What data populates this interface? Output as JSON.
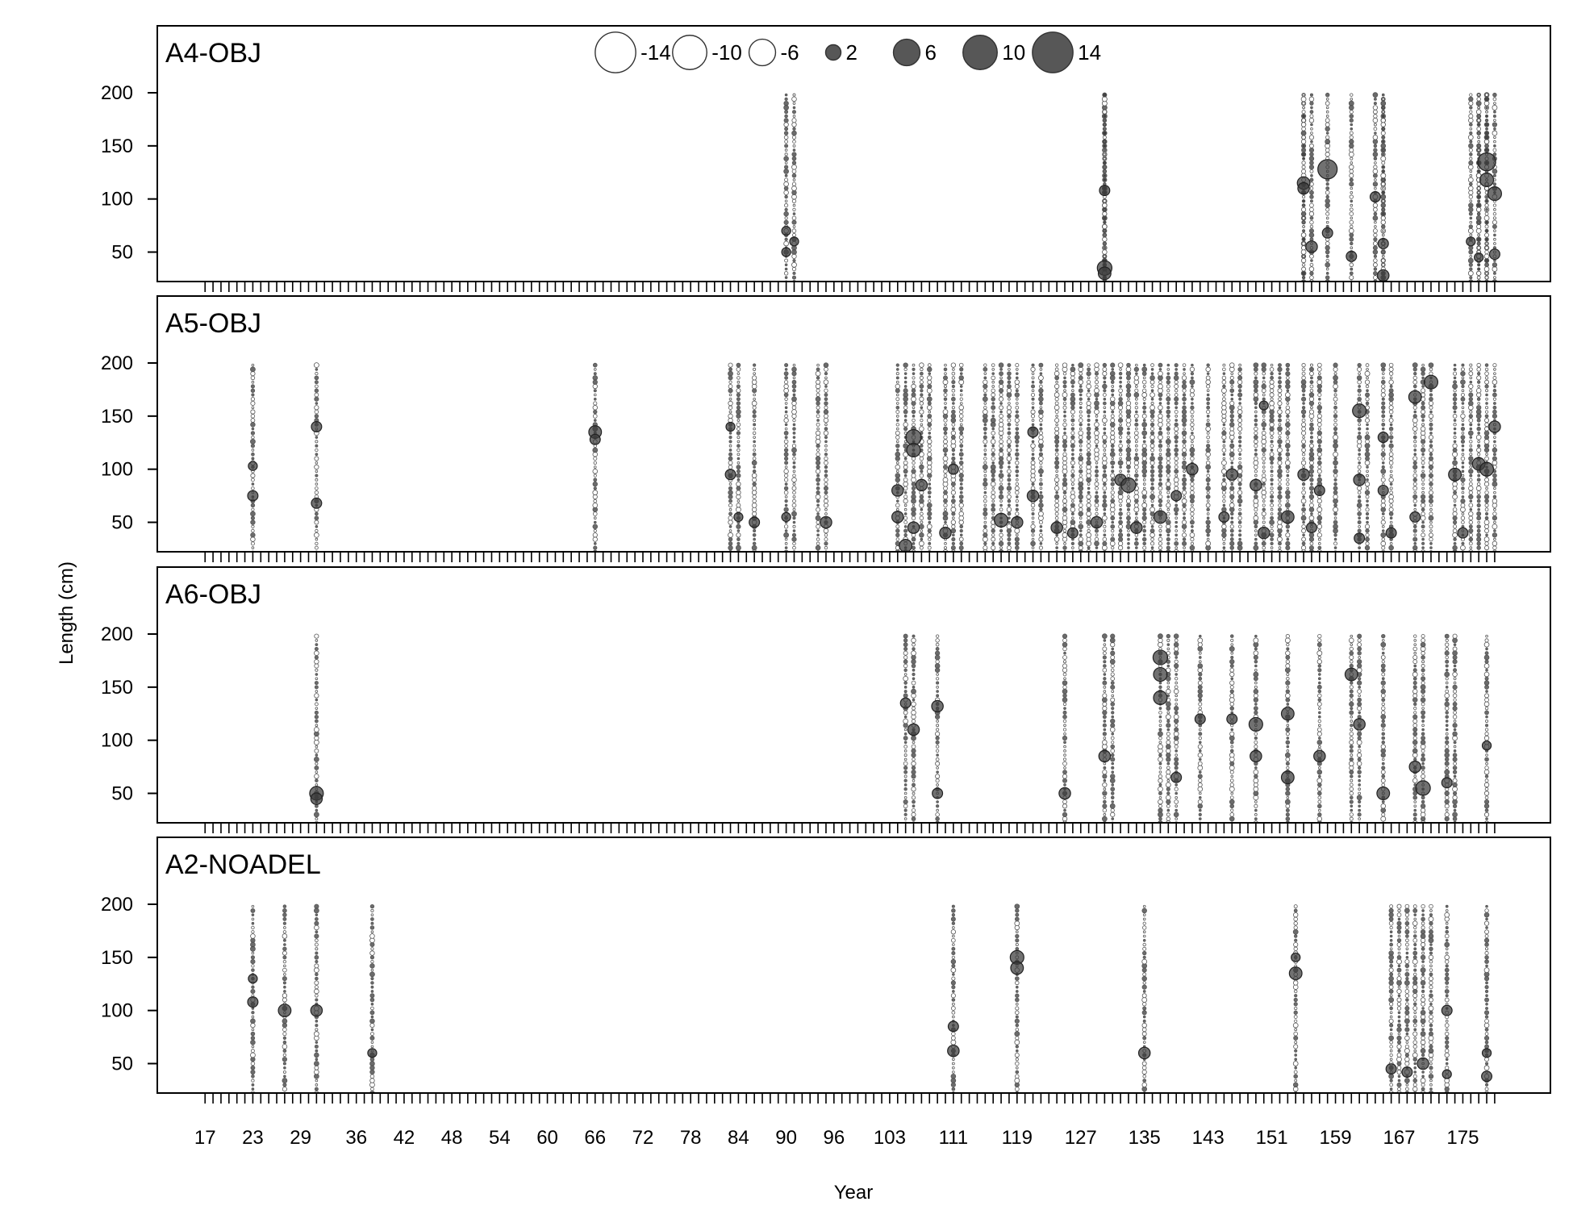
{
  "chart_data": {
    "type": "scatter",
    "style": "bubble residual plot, one row per fleet, hollow = negative, filled grey = positive",
    "xlabel": "Year",
    "ylabel": "Length (cm)",
    "x_range": [
      11,
      186
    ],
    "y_range": [
      20,
      200
    ],
    "y_ticks": [
      50,
      100,
      150,
      200
    ],
    "x_tick_labels": [
      17,
      23,
      29,
      36,
      42,
      48,
      54,
      60,
      66,
      72,
      78,
      84,
      90,
      96,
      103,
      111,
      119,
      127,
      135,
      143,
      151,
      159,
      167,
      175
    ],
    "colors": {
      "positive": "#3a3a3a",
      "negative": "#ffffff",
      "stroke": "#555555",
      "frame": "#000000"
    },
    "legend": {
      "position": "top-center",
      "values": [
        -14,
        -10,
        -6,
        2,
        6,
        10,
        14
      ],
      "labels": [
        "-14",
        "-10",
        "-6",
        "2",
        "6",
        "10",
        "14"
      ]
    },
    "panels": [
      {
        "name": "A4-OBJ",
        "years": [
          90,
          91,
          130,
          130,
          130,
          155,
          155,
          156,
          158,
          161,
          164,
          165,
          165,
          176,
          177,
          177,
          178,
          178,
          179
        ],
        "highlights": [
          {
            "year": 90,
            "length": 50,
            "value": 3
          },
          {
            "year": 90,
            "length": 70,
            "value": 3
          },
          {
            "year": 91,
            "length": 60,
            "value": 3
          },
          {
            "year": 130,
            "length": 108,
            "value": 4
          },
          {
            "year": 130,
            "length": 35,
            "value": 8
          },
          {
            "year": 130,
            "length": 30,
            "value": 6
          },
          {
            "year": 155,
            "length": 115,
            "value": 6
          },
          {
            "year": 155,
            "length": 110,
            "value": 5
          },
          {
            "year": 156,
            "length": 55,
            "value": 5
          },
          {
            "year": 158,
            "length": 128,
            "value": 14
          },
          {
            "year": 158,
            "length": 68,
            "value": 4
          },
          {
            "year": 161,
            "length": 46,
            "value": 4
          },
          {
            "year": 164,
            "length": 102,
            "value": 4
          },
          {
            "year": 165,
            "length": 58,
            "value": 4
          },
          {
            "year": 165,
            "length": 28,
            "value": 5
          },
          {
            "year": 176,
            "length": 60,
            "value": 3
          },
          {
            "year": 177,
            "length": 45,
            "value": 3
          },
          {
            "year": 178,
            "length": 135,
            "value": 12
          },
          {
            "year": 178,
            "length": 118,
            "value": 7
          },
          {
            "year": 179,
            "length": 105,
            "value": 7
          },
          {
            "year": 179,
            "length": 48,
            "value": 4
          }
        ]
      },
      {
        "name": "A5-OBJ",
        "years": [
          23,
          31,
          66,
          83,
          84,
          86,
          90,
          91,
          94,
          95,
          104,
          105,
          106,
          107,
          108,
          110,
          111,
          112,
          115,
          116,
          117,
          118,
          119,
          121,
          122,
          124,
          125,
          126,
          127,
          128,
          129,
          130,
          131,
          132,
          133,
          134,
          135,
          136,
          137,
          138,
          139,
          140,
          141,
          143,
          145,
          146,
          147,
          149,
          150,
          151,
          152,
          153,
          155,
          156,
          157,
          159,
          162,
          163,
          165,
          166,
          169,
          170,
          171,
          174,
          175,
          176,
          177,
          178,
          179
        ],
        "highlights": [
          {
            "year": 23,
            "length": 75,
            "value": 4
          },
          {
            "year": 23,
            "length": 103,
            "value": 3
          },
          {
            "year": 31,
            "length": 140,
            "value": 4
          },
          {
            "year": 31,
            "length": 68,
            "value": 4
          },
          {
            "year": 66,
            "length": 135,
            "value": 6
          },
          {
            "year": 66,
            "length": 128,
            "value": 4
          },
          {
            "year": 83,
            "length": 95,
            "value": 4
          },
          {
            "year": 83,
            "length": 140,
            "value": 3
          },
          {
            "year": 84,
            "length": 55,
            "value": 3
          },
          {
            "year": 86,
            "length": 50,
            "value": 4
          },
          {
            "year": 90,
            "length": 55,
            "value": 3
          },
          {
            "year": 95,
            "length": 50,
            "value": 5
          },
          {
            "year": 104,
            "length": 80,
            "value": 5
          },
          {
            "year": 104,
            "length": 55,
            "value": 5
          },
          {
            "year": 105,
            "length": 28,
            "value": 6
          },
          {
            "year": 106,
            "length": 130,
            "value": 9
          },
          {
            "year": 106,
            "length": 118,
            "value": 7
          },
          {
            "year": 106,
            "length": 45,
            "value": 5
          },
          {
            "year": 107,
            "length": 85,
            "value": 5
          },
          {
            "year": 110,
            "length": 40,
            "value": 5
          },
          {
            "year": 111,
            "length": 100,
            "value": 4
          },
          {
            "year": 117,
            "length": 52,
            "value": 7
          },
          {
            "year": 119,
            "length": 50,
            "value": 5
          },
          {
            "year": 121,
            "length": 135,
            "value": 4
          },
          {
            "year": 121,
            "length": 75,
            "value": 5
          },
          {
            "year": 124,
            "length": 45,
            "value": 5
          },
          {
            "year": 126,
            "length": 40,
            "value": 4
          },
          {
            "year": 129,
            "length": 50,
            "value": 5
          },
          {
            "year": 132,
            "length": 90,
            "value": 5
          },
          {
            "year": 133,
            "length": 85,
            "value": 8
          },
          {
            "year": 134,
            "length": 45,
            "value": 5
          },
          {
            "year": 137,
            "length": 55,
            "value": 6
          },
          {
            "year": 139,
            "length": 75,
            "value": 4
          },
          {
            "year": 141,
            "length": 100,
            "value": 5
          },
          {
            "year": 145,
            "length": 55,
            "value": 4
          },
          {
            "year": 146,
            "length": 95,
            "value": 5
          },
          {
            "year": 149,
            "length": 85,
            "value": 5
          },
          {
            "year": 150,
            "length": 40,
            "value": 5
          },
          {
            "year": 150,
            "length": 160,
            "value": 3
          },
          {
            "year": 153,
            "length": 55,
            "value": 6
          },
          {
            "year": 155,
            "length": 95,
            "value": 5
          },
          {
            "year": 156,
            "length": 45,
            "value": 4
          },
          {
            "year": 157,
            "length": 80,
            "value": 4
          },
          {
            "year": 162,
            "length": 155,
            "value": 7
          },
          {
            "year": 162,
            "length": 90,
            "value": 5
          },
          {
            "year": 162,
            "length": 35,
            "value": 4
          },
          {
            "year": 165,
            "length": 130,
            "value": 4
          },
          {
            "year": 165,
            "length": 80,
            "value": 4
          },
          {
            "year": 166,
            "length": 40,
            "value": 4
          },
          {
            "year": 169,
            "length": 168,
            "value": 6
          },
          {
            "year": 169,
            "length": 55,
            "value": 4
          },
          {
            "year": 171,
            "length": 182,
            "value": 7
          },
          {
            "year": 174,
            "length": 95,
            "value": 6
          },
          {
            "year": 175,
            "length": 40,
            "value": 4
          },
          {
            "year": 177,
            "length": 105,
            "value": 6
          },
          {
            "year": 178,
            "length": 100,
            "value": 7
          },
          {
            "year": 179,
            "length": 140,
            "value": 5
          }
        ]
      },
      {
        "name": "A6-OBJ",
        "years": [
          31,
          105,
          106,
          109,
          125,
          130,
          131,
          137,
          138,
          139,
          142,
          146,
          149,
          153,
          157,
          161,
          162,
          165,
          169,
          170,
          173,
          174,
          178
        ],
        "highlights": [
          {
            "year": 31,
            "length": 50,
            "value": 7
          },
          {
            "year": 31,
            "length": 45,
            "value": 5
          },
          {
            "year": 105,
            "length": 135,
            "value": 4
          },
          {
            "year": 106,
            "length": 110,
            "value": 5
          },
          {
            "year": 109,
            "length": 132,
            "value": 5
          },
          {
            "year": 109,
            "length": 50,
            "value": 4
          },
          {
            "year": 125,
            "length": 50,
            "value": 5
          },
          {
            "year": 130,
            "length": 85,
            "value": 5
          },
          {
            "year": 137,
            "length": 178,
            "value": 8
          },
          {
            "year": 137,
            "length": 162,
            "value": 7
          },
          {
            "year": 137,
            "length": 140,
            "value": 7
          },
          {
            "year": 139,
            "length": 65,
            "value": 4
          },
          {
            "year": 142,
            "length": 120,
            "value": 4
          },
          {
            "year": 146,
            "length": 120,
            "value": 4
          },
          {
            "year": 149,
            "length": 115,
            "value": 7
          },
          {
            "year": 149,
            "length": 85,
            "value": 5
          },
          {
            "year": 153,
            "length": 125,
            "value": 6
          },
          {
            "year": 153,
            "length": 65,
            "value": 6
          },
          {
            "year": 157,
            "length": 85,
            "value": 5
          },
          {
            "year": 161,
            "length": 162,
            "value": 6
          },
          {
            "year": 162,
            "length": 115,
            "value": 5
          },
          {
            "year": 165,
            "length": 50,
            "value": 6
          },
          {
            "year": 169,
            "length": 75,
            "value": 5
          },
          {
            "year": 170,
            "length": 55,
            "value": 8
          },
          {
            "year": 173,
            "length": 60,
            "value": 4
          },
          {
            "year": 178,
            "length": 95,
            "value": 3
          }
        ]
      },
      {
        "name": "A2-NOADEL",
        "years": [
          23,
          27,
          31,
          38,
          111,
          119,
          135,
          154,
          166,
          167,
          168,
          169,
          170,
          171,
          173,
          178
        ],
        "highlights": [
          {
            "year": 23,
            "length": 108,
            "value": 4
          },
          {
            "year": 23,
            "length": 130,
            "value": 3
          },
          {
            "year": 27,
            "length": 100,
            "value": 6
          },
          {
            "year": 31,
            "length": 100,
            "value": 5
          },
          {
            "year": 38,
            "length": 60,
            "value": 3
          },
          {
            "year": 111,
            "length": 62,
            "value": 5
          },
          {
            "year": 111,
            "length": 85,
            "value": 4
          },
          {
            "year": 119,
            "length": 150,
            "value": 7
          },
          {
            "year": 119,
            "length": 140,
            "value": 6
          },
          {
            "year": 135,
            "length": 60,
            "value": 5
          },
          {
            "year": 154,
            "length": 135,
            "value": 6
          },
          {
            "year": 154,
            "length": 150,
            "value": 3
          },
          {
            "year": 166,
            "length": 45,
            "value": 4
          },
          {
            "year": 168,
            "length": 42,
            "value": 4
          },
          {
            "year": 170,
            "length": 50,
            "value": 5
          },
          {
            "year": 173,
            "length": 40,
            "value": 3
          },
          {
            "year": 173,
            "length": 100,
            "value": 4
          },
          {
            "year": 178,
            "length": 38,
            "value": 4
          },
          {
            "year": 178,
            "length": 60,
            "value": 3
          }
        ]
      }
    ]
  }
}
